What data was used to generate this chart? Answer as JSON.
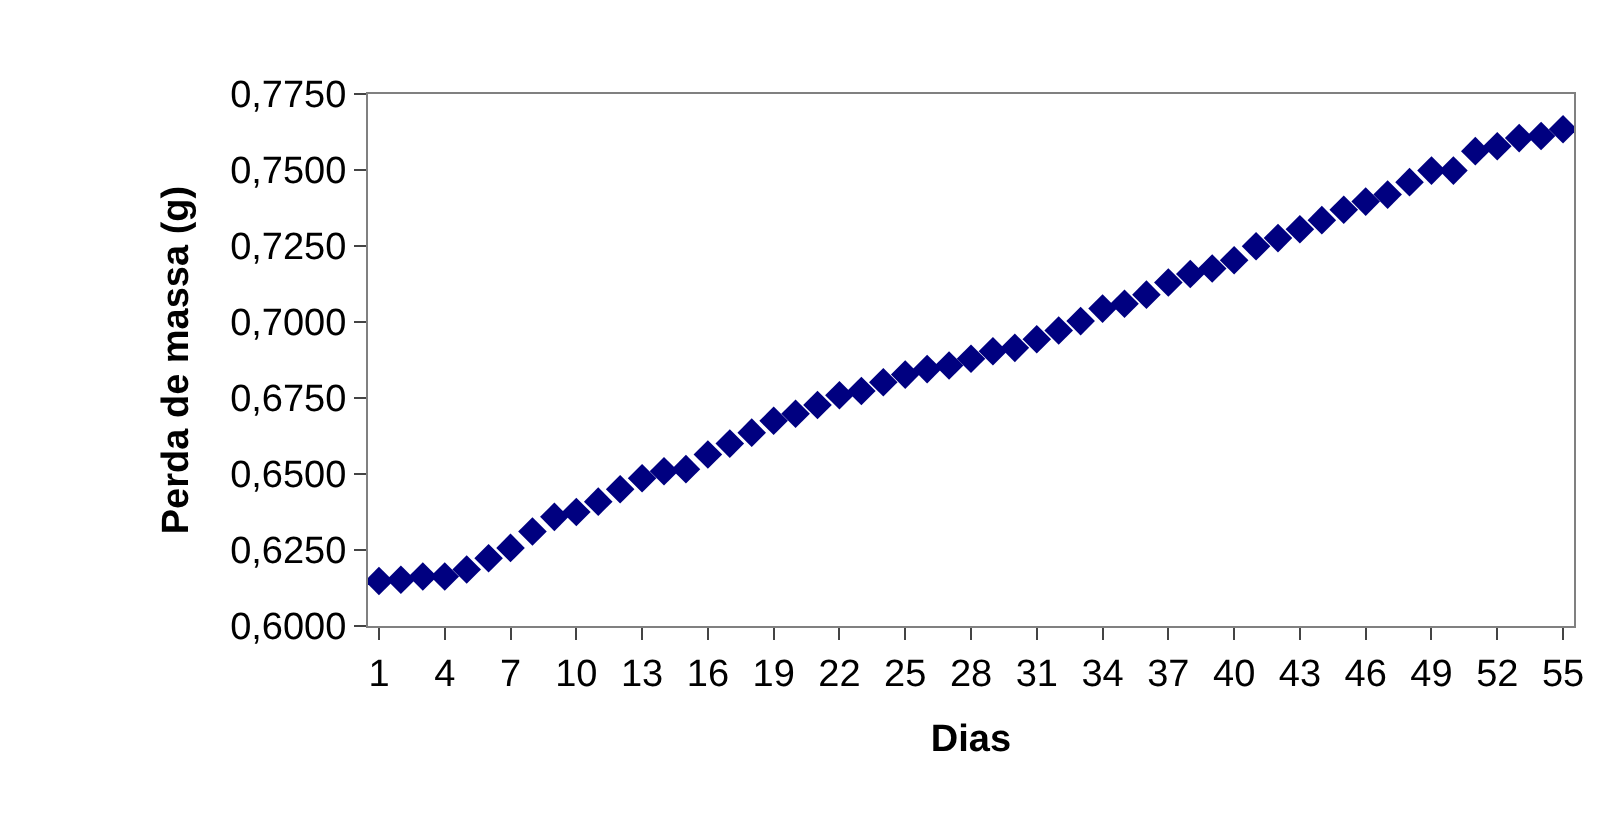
{
  "chart_data": {
    "type": "scatter",
    "xlabel": "Dias",
    "ylabel": "Perda de massa (g)",
    "categories": [
      "1",
      null,
      null,
      "4",
      null,
      null,
      "7",
      null,
      null,
      "10",
      null,
      null,
      "13",
      null,
      null,
      "16",
      null,
      null,
      "19",
      null,
      null,
      "22",
      null,
      null,
      "25",
      null,
      null,
      "28",
      null,
      null,
      "31",
      null,
      null,
      "34",
      null,
      null,
      "37",
      null,
      null,
      "40",
      null,
      null,
      "43",
      null,
      null,
      "46",
      null,
      null,
      "49",
      null,
      null,
      "52",
      null,
      null,
      "55"
    ],
    "series": [
      {
        "color": "#000080",
        "values": [
          0.6148,
          0.6152,
          0.6163,
          0.6163,
          0.6186,
          0.6223,
          0.6257,
          0.6311,
          0.6359,
          0.6375,
          0.6409,
          0.645,
          0.6486,
          0.6509,
          0.6516,
          0.6564,
          0.66,
          0.6636,
          0.6675,
          0.6698,
          0.6727,
          0.6759,
          0.6773,
          0.6802,
          0.6827,
          0.6845,
          0.6857,
          0.6879,
          0.6904,
          0.6915,
          0.6943,
          0.6972,
          0.7003,
          0.7044,
          0.706,
          0.709,
          0.713,
          0.7158,
          0.7176,
          0.7203,
          0.7249,
          0.7276,
          0.7305,
          0.7335,
          0.7369,
          0.7396,
          0.7419,
          0.746,
          0.7498,
          0.7498,
          0.7562,
          0.7578,
          0.7605,
          0.7612,
          0.7634
        ]
      }
    ],
    "ylim": [
      0.6,
      0.775
    ],
    "yticks": [
      {
        "value": 0.6,
        "label": "0,6000"
      },
      {
        "value": 0.625,
        "label": "0,6250"
      },
      {
        "value": 0.65,
        "label": "0,6500"
      },
      {
        "value": 0.675,
        "label": "0,6750"
      },
      {
        "value": 0.7,
        "label": "0,7000"
      },
      {
        "value": 0.725,
        "label": "0,7250"
      },
      {
        "value": 0.75,
        "label": "0,7500"
      },
      {
        "value": 0.775,
        "label": "0,7750"
      }
    ],
    "marker": "diamond"
  }
}
